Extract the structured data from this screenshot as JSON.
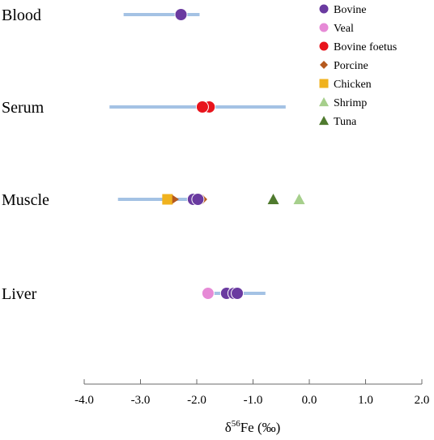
{
  "chart_data": {
    "type": "scatter",
    "title": "",
    "xlabel": {
      "prefix": "δ",
      "sup": "56",
      "suffix": "Fe (‰)"
    },
    "xlim": [
      -4.0,
      2.0
    ],
    "xticks": [
      -4.0,
      -3.0,
      -2.0,
      -1.0,
      0.0,
      1.0,
      2.0
    ],
    "xtick_labels": [
      "-4.0",
      "-3.0",
      "-2.0",
      "-1.0",
      "0.0",
      "1.0",
      "2.0"
    ],
    "grid": false,
    "legend_position": "top-right",
    "categories": [
      "Blood",
      "Serum",
      "Muscle",
      "Liver"
    ],
    "ranges": [
      {
        "category": "Blood",
        "min": -3.3,
        "max": -1.95
      },
      {
        "category": "Serum",
        "min": -3.55,
        "max": -0.42
      },
      {
        "category": "Muscle",
        "min": -3.4,
        "max": -1.9
      },
      {
        "category": "Liver",
        "min": -1.9,
        "max": -0.78
      }
    ],
    "series": [
      {
        "name": "Bovine",
        "marker": "circle",
        "color": "#6a3aa0",
        "points": [
          {
            "category": "Blood",
            "x": -2.28
          },
          {
            "category": "Muscle",
            "x": -2.06
          },
          {
            "category": "Muscle",
            "x": -1.98
          },
          {
            "category": "Liver",
            "x": -1.47
          },
          {
            "category": "Liver",
            "x": -1.34
          },
          {
            "category": "Liver",
            "x": -1.28
          }
        ]
      },
      {
        "name": "Veal",
        "marker": "circle",
        "color": "#e68ad6",
        "points": [
          {
            "category": "Liver",
            "x": -1.8
          }
        ]
      },
      {
        "name": "Bovine foetus",
        "marker": "circle",
        "color": "#e8141c",
        "points": [
          {
            "category": "Serum",
            "x": -1.78
          },
          {
            "category": "Serum",
            "x": -1.9
          }
        ]
      },
      {
        "name": "Porcine",
        "marker": "diamond",
        "color": "#b5591e",
        "points": [
          {
            "category": "Muscle",
            "x": -1.9
          }
        ]
      },
      {
        "name": "Chicken",
        "marker": "square",
        "color": "#f0b21e",
        "points": [
          {
            "category": "Muscle",
            "x": -2.52
          }
        ]
      },
      {
        "name": "Shrimp",
        "marker": "triangle",
        "color": "#a6cf8c",
        "points": [
          {
            "category": "Muscle",
            "x": -0.18
          }
        ]
      },
      {
        "name": "Tuna",
        "marker": "triangle",
        "color": "#4f7a2e",
        "points": [
          {
            "category": "Muscle",
            "x": -0.64
          }
        ]
      },
      {
        "name": "",
        "marker": "triangle-right",
        "color": "#b5591e",
        "points": [
          {
            "category": "Muscle",
            "x": -2.38
          }
        ]
      }
    ],
    "range_color": "#a4c2e4"
  }
}
